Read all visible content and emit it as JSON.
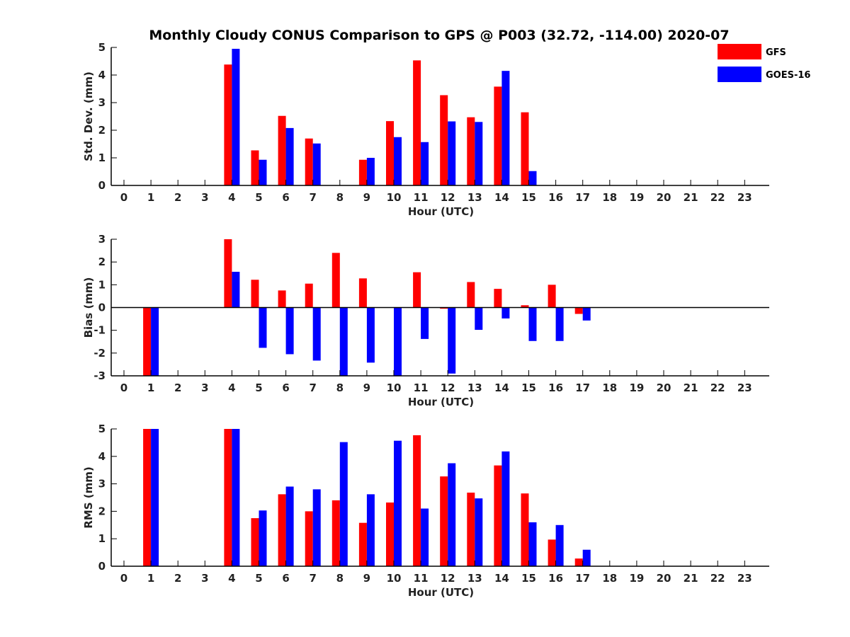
{
  "figure": {
    "title": "Monthly Cloudy CONUS Comparison to GPS @ P003 (32.72, -114.00) 2020-07"
  },
  "legend": {
    "placement": "top-right",
    "items": [
      {
        "label": "GFS",
        "color": "#ff0000"
      },
      {
        "label": "GOES-16",
        "color": "#0000ff"
      }
    ]
  },
  "chart_data": [
    {
      "type": "bar",
      "xlabel": "Hour (UTC)",
      "ylabel": "Std. Dev. (mm)",
      "ylim": [
        0,
        5
      ],
      "yticks": [
        0,
        1,
        2,
        3,
        4,
        5
      ],
      "categories": [
        "0",
        "1",
        "2",
        "3",
        "4",
        "5",
        "6",
        "7",
        "8",
        "9",
        "10",
        "11",
        "12",
        "13",
        "14",
        "15",
        "16",
        "17",
        "18",
        "19",
        "20",
        "21",
        "22",
        "23"
      ],
      "series": [
        {
          "name": "GFS",
          "color": "#ff0000",
          "values": [
            null,
            null,
            null,
            null,
            4.38,
            1.27,
            2.52,
            1.7,
            null,
            0.93,
            2.33,
            4.53,
            3.27,
            2.47,
            3.58,
            2.65,
            null,
            null,
            null,
            null,
            null,
            null,
            null,
            null
          ]
        },
        {
          "name": "GOES-16",
          "color": "#0000ff",
          "values": [
            null,
            null,
            null,
            null,
            4.95,
            0.93,
            2.08,
            1.52,
            null,
            1.0,
            1.75,
            1.57,
            2.32,
            2.3,
            4.15,
            0.52,
            null,
            null,
            null,
            null,
            null,
            null,
            null,
            null
          ]
        }
      ]
    },
    {
      "type": "bar",
      "xlabel": "Hour (UTC)",
      "ylabel": "Bias (mm)",
      "ylim": [
        -3,
        3
      ],
      "yticks": [
        -3,
        -2,
        -1,
        0,
        1,
        2,
        3
      ],
      "zero_line": true,
      "categories": [
        "0",
        "1",
        "2",
        "3",
        "4",
        "5",
        "6",
        "7",
        "8",
        "9",
        "10",
        "11",
        "12",
        "13",
        "14",
        "15",
        "16",
        "17",
        "18",
        "19",
        "20",
        "21",
        "22",
        "23"
      ],
      "series": [
        {
          "name": "GFS",
          "color": "#ff0000",
          "values": [
            null,
            -3.0,
            null,
            null,
            3.0,
            1.22,
            0.75,
            1.05,
            2.4,
            1.28,
            null,
            1.55,
            -0.05,
            1.12,
            0.82,
            0.1,
            1.0,
            -0.28,
            null,
            null,
            null,
            null,
            null,
            null
          ]
        },
        {
          "name": "GOES-16",
          "color": "#0000ff",
          "values": [
            null,
            -3.0,
            null,
            null,
            1.57,
            -1.77,
            -2.05,
            -2.33,
            -3.0,
            -2.42,
            -3.0,
            -1.38,
            -2.9,
            -0.98,
            -0.48,
            -1.47,
            -1.47,
            -0.57,
            null,
            null,
            null,
            null,
            null,
            null
          ]
        }
      ]
    },
    {
      "type": "bar",
      "xlabel": "Hour (UTC)",
      "ylabel": "RMS (mm)",
      "ylim": [
        0,
        5
      ],
      "yticks": [
        0,
        1,
        2,
        3,
        4,
        5
      ],
      "categories": [
        "0",
        "1",
        "2",
        "3",
        "4",
        "5",
        "6",
        "7",
        "8",
        "9",
        "10",
        "11",
        "12",
        "13",
        "14",
        "15",
        "16",
        "17",
        "18",
        "19",
        "20",
        "21",
        "22",
        "23"
      ],
      "series": [
        {
          "name": "GFS",
          "color": "#ff0000",
          "values": [
            null,
            5.0,
            null,
            null,
            5.0,
            1.75,
            2.62,
            2.0,
            2.4,
            1.58,
            2.32,
            4.77,
            3.27,
            2.68,
            3.67,
            2.65,
            0.97,
            0.28,
            null,
            null,
            null,
            null,
            null,
            null
          ]
        },
        {
          "name": "GOES-16",
          "color": "#0000ff",
          "values": [
            null,
            5.0,
            null,
            null,
            5.0,
            2.03,
            2.9,
            2.8,
            4.52,
            2.62,
            4.57,
            2.1,
            3.75,
            2.47,
            4.18,
            1.6,
            1.5,
            0.6,
            null,
            null,
            null,
            null,
            null,
            null
          ]
        }
      ]
    }
  ]
}
